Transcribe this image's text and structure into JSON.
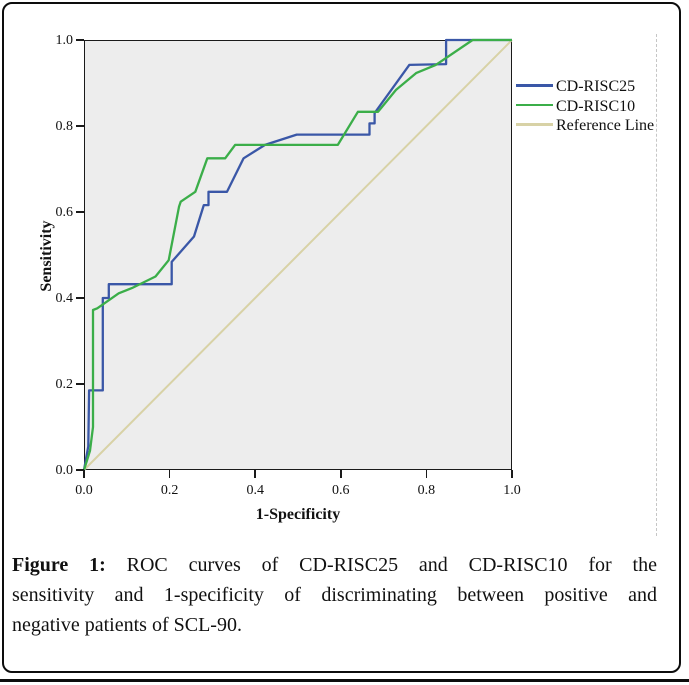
{
  "caption": {
    "label": "Figure 1:",
    "line1_rest": " ROC curves of CD-RISC25 and CD-RISC10 for the",
    "line2": "sensitivity and 1-specificity of discriminating between positive and",
    "line3": "negative patients of SCL-90."
  },
  "colors": {
    "frame": "#1a1a1a",
    "plot_background": "#ededed",
    "divider": "#c6c6c6",
    "bottom_rule": "#0d0d0d"
  },
  "chart_data": {
    "type": "line",
    "title": "",
    "xlabel": "1-Specificity",
    "ylabel": "Sensitivity",
    "xlim": [
      0,
      1
    ],
    "ylim": [
      0,
      1
    ],
    "x_ticks": [
      "0.0",
      "0.2",
      "0.4",
      "0.6",
      "0.8",
      "1.0"
    ],
    "y_ticks": [
      "0.0",
      "0.2",
      "0.4",
      "0.6",
      "0.8",
      "1.0"
    ],
    "grid": false,
    "legend_position": "right",
    "plot_bg": "#ededed",
    "draw_order": [
      2,
      0,
      1
    ],
    "series": [
      {
        "name": "CD-RISC25",
        "color": "#3a57a7",
        "points": [
          [
            0,
            0
          ],
          [
            0.01,
            0.055
          ],
          [
            0.012,
            0.185
          ],
          [
            0.044,
            0.185
          ],
          [
            0.044,
            0.4
          ],
          [
            0.058,
            0.4
          ],
          [
            0.058,
            0.432
          ],
          [
            0.205,
            0.432
          ],
          [
            0.205,
            0.484
          ],
          [
            0.257,
            0.543
          ],
          [
            0.28,
            0.616
          ],
          [
            0.291,
            0.616
          ],
          [
            0.291,
            0.647
          ],
          [
            0.334,
            0.647
          ],
          [
            0.373,
            0.725
          ],
          [
            0.423,
            0.756
          ],
          [
            0.497,
            0.78
          ],
          [
            0.667,
            0.78
          ],
          [
            0.667,
            0.806
          ],
          [
            0.679,
            0.806
          ],
          [
            0.679,
            0.83
          ],
          [
            0.76,
            0.942
          ],
          [
            0.846,
            0.944
          ],
          [
            0.846,
            1
          ],
          [
            1,
            1
          ]
        ]
      },
      {
        "name": "CD-RISC10",
        "color": "#3bae49",
        "points": [
          [
            0,
            0
          ],
          [
            0.014,
            0.045
          ],
          [
            0.021,
            0.1
          ],
          [
            0.021,
            0.372
          ],
          [
            0.031,
            0.376
          ],
          [
            0.081,
            0.411
          ],
          [
            0.112,
            0.423
          ],
          [
            0.167,
            0.45
          ],
          [
            0.198,
            0.488
          ],
          [
            0.222,
            0.612
          ],
          [
            0.226,
            0.624
          ],
          [
            0.26,
            0.647
          ],
          [
            0.288,
            0.725
          ],
          [
            0.33,
            0.725
          ],
          [
            0.353,
            0.756
          ],
          [
            0.593,
            0.756
          ],
          [
            0.64,
            0.833
          ],
          [
            0.687,
            0.833
          ],
          [
            0.729,
            0.884
          ],
          [
            0.776,
            0.923
          ],
          [
            0.822,
            0.942
          ],
          [
            0.908,
            1
          ],
          [
            1,
            1
          ]
        ]
      },
      {
        "name": "Reference Line",
        "color": "#d8d2a6",
        "points": [
          [
            0,
            0
          ],
          [
            1,
            1
          ]
        ]
      }
    ]
  }
}
